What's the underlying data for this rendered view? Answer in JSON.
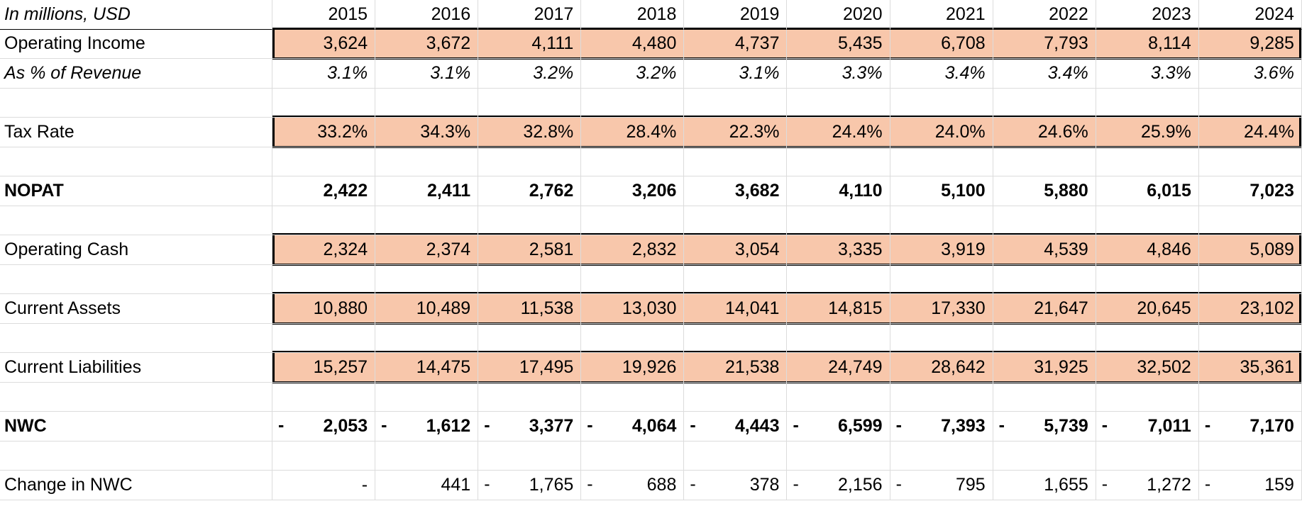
{
  "header": {
    "label": "In millions, USD",
    "years": [
      "2015",
      "2016",
      "2017",
      "2018",
      "2019",
      "2020",
      "2021",
      "2022",
      "2023",
      "2024"
    ]
  },
  "rows": [
    {
      "key": "operating_income",
      "label": "Operating Income",
      "highlighted": true,
      "values": [
        "3,624",
        "3,672",
        "4,111",
        "4,480",
        "4,737",
        "5,435",
        "6,708",
        "7,793",
        "8,114",
        "9,285"
      ]
    },
    {
      "key": "pct_revenue",
      "label": "As % of Revenue",
      "italic": true,
      "values": [
        "3.1%",
        "3.1%",
        "3.2%",
        "3.2%",
        "3.1%",
        "3.3%",
        "3.4%",
        "3.4%",
        "3.3%",
        "3.6%"
      ]
    },
    {
      "key": "blank1",
      "label": "",
      "values": [
        "",
        "",
        "",
        "",
        "",
        "",
        "",
        "",
        "",
        ""
      ]
    },
    {
      "key": "tax_rate",
      "label": "Tax Rate",
      "highlighted": true,
      "values": [
        "33.2%",
        "34.3%",
        "32.8%",
        "28.4%",
        "22.3%",
        "24.4%",
        "24.0%",
        "24.6%",
        "25.9%",
        "24.4%"
      ]
    },
    {
      "key": "blank2",
      "label": "",
      "values": [
        "",
        "",
        "",
        "",
        "",
        "",
        "",
        "",
        "",
        ""
      ]
    },
    {
      "key": "nopat",
      "label": "NOPAT",
      "bold": true,
      "values": [
        "2,422",
        "2,411",
        "2,762",
        "3,206",
        "3,682",
        "4,110",
        "5,100",
        "5,880",
        "6,015",
        "7,023"
      ]
    },
    {
      "key": "blank3",
      "label": "",
      "values": [
        "",
        "",
        "",
        "",
        "",
        "",
        "",
        "",
        "",
        ""
      ]
    },
    {
      "key": "operating_cash",
      "label": "Operating Cash",
      "highlighted": true,
      "values": [
        "2,324",
        "2,374",
        "2,581",
        "2,832",
        "3,054",
        "3,335",
        "3,919",
        "4,539",
        "4,846",
        "5,089"
      ]
    },
    {
      "key": "blank4",
      "label": "",
      "values": [
        "",
        "",
        "",
        "",
        "",
        "",
        "",
        "",
        "",
        ""
      ]
    },
    {
      "key": "current_assets",
      "label": "Current Assets",
      "highlighted": true,
      "values": [
        "10,880",
        "10,489",
        "11,538",
        "13,030",
        "14,041",
        "14,815",
        "17,330",
        "21,647",
        "20,645",
        "23,102"
      ]
    },
    {
      "key": "blank5",
      "label": "",
      "values": [
        "",
        "",
        "",
        "",
        "",
        "",
        "",
        "",
        "",
        ""
      ]
    },
    {
      "key": "current_liabilities",
      "label": "Current Liabilities",
      "highlighted": true,
      "values": [
        "15,257",
        "14,475",
        "17,495",
        "19,926",
        "21,538",
        "24,749",
        "28,642",
        "31,925",
        "32,502",
        "35,361"
      ]
    },
    {
      "key": "blank6",
      "label": "",
      "values": [
        "",
        "",
        "",
        "",
        "",
        "",
        "",
        "",
        "",
        ""
      ]
    },
    {
      "key": "nwc",
      "label": "NWC",
      "bold": true,
      "values": [
        "2,053",
        "1,612",
        "3,377",
        "4,064",
        "4,443",
        "6,599",
        "7,393",
        "5,739",
        "7,011",
        "7,170"
      ],
      "negative": [
        true,
        true,
        true,
        true,
        true,
        true,
        true,
        true,
        true,
        true
      ]
    },
    {
      "key": "blank7",
      "label": "",
      "values": [
        "",
        "",
        "",
        "",
        "",
        "",
        "",
        "",
        "",
        ""
      ]
    },
    {
      "key": "change_nwc",
      "label": "Change in NWC",
      "values": [
        "-",
        "441",
        "1,765",
        "688",
        "378",
        "2,156",
        "795",
        "1,655",
        "1,272",
        "159"
      ],
      "negative": [
        false,
        false,
        true,
        true,
        true,
        true,
        true,
        false,
        true,
        true
      ]
    }
  ],
  "colors": {
    "highlight_fill": "#f8c7ab",
    "highlight_border": "#000000",
    "gridline": "#dcdcdc"
  }
}
